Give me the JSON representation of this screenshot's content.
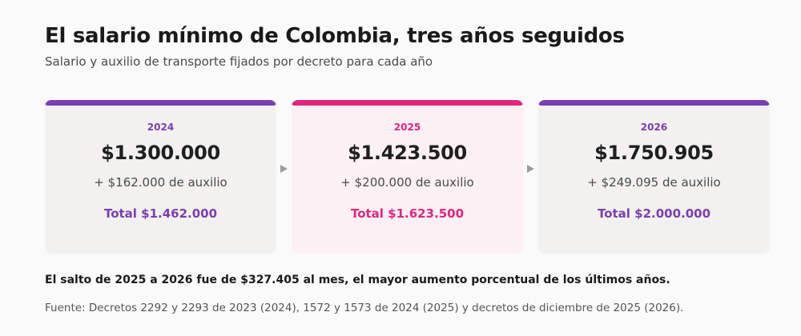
{
  "header": {
    "title": "El salario mínimo de Colombia, tres años seguidos",
    "subtitle": "Salario y auxilio de transporte fijados por decreto para cada año"
  },
  "colors": {
    "purple": "#7b3fb0",
    "pink": "#e0267c",
    "arrow": "#9b9b9b"
  },
  "cards": [
    {
      "year": "2024",
      "amount": "$1.300.000",
      "aux": "+ $162.000 de auxilio",
      "total": "Total $1.462.000",
      "accent": "#7b3fb0"
    },
    {
      "year": "2025",
      "amount": "$1.423.500",
      "aux": "+ $200.000 de auxilio",
      "total": "Total $1.623.500",
      "accent": "#e0267c"
    },
    {
      "year": "2026",
      "amount": "$1.750.905",
      "aux": "+ $249.095 de auxilio",
      "total": "Total $2.000.000",
      "accent": "#7b3fb0"
    }
  ],
  "footer": {
    "note": "El salto de 2025 a 2026 fue de $327.405 al mes, el mayor aumento porcentual de los últimos años.",
    "source": "Fuente: Decretos 2292 y 2293 de 2023 (2024), 1572 y 1573 de 2024 (2025) y decretos de diciembre de 2025 (2026)."
  }
}
